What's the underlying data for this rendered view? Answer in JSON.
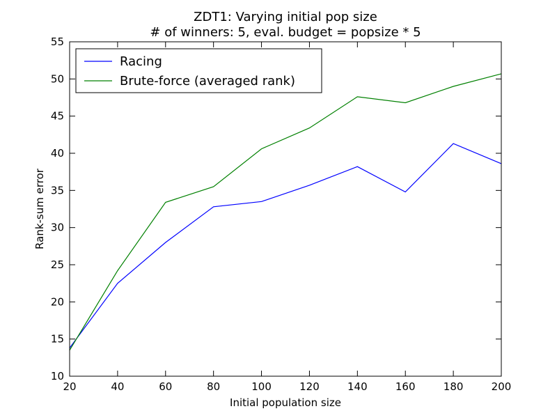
{
  "chart_data": {
    "type": "line",
    "title": "ZDT1: Varying initial pop size",
    "subtitle": "# of winners: 5, eval. budget = popsize * 5",
    "xlabel": "Initial population size",
    "ylabel": "Rank-sum error",
    "xlim": [
      20,
      200
    ],
    "ylim": [
      10,
      55
    ],
    "xticks": [
      20,
      40,
      60,
      80,
      100,
      120,
      140,
      160,
      180,
      200
    ],
    "yticks": [
      10,
      15,
      20,
      25,
      30,
      35,
      40,
      45,
      50,
      55
    ],
    "grid": false,
    "legend_position": "top-left",
    "x": [
      20,
      40,
      60,
      80,
      100,
      120,
      140,
      160,
      180,
      200
    ],
    "series": [
      {
        "name": "Racing",
        "color": "#0000ff",
        "values": [
          13.8,
          22.5,
          28.0,
          32.8,
          33.5,
          35.7,
          38.2,
          34.8,
          41.3,
          38.6
        ]
      },
      {
        "name": "Brute-force (averaged rank)",
        "color": "#008000",
        "values": [
          13.5,
          24.2,
          33.4,
          35.5,
          40.6,
          43.4,
          47.6,
          46.8,
          49.0,
          50.7
        ]
      }
    ]
  }
}
